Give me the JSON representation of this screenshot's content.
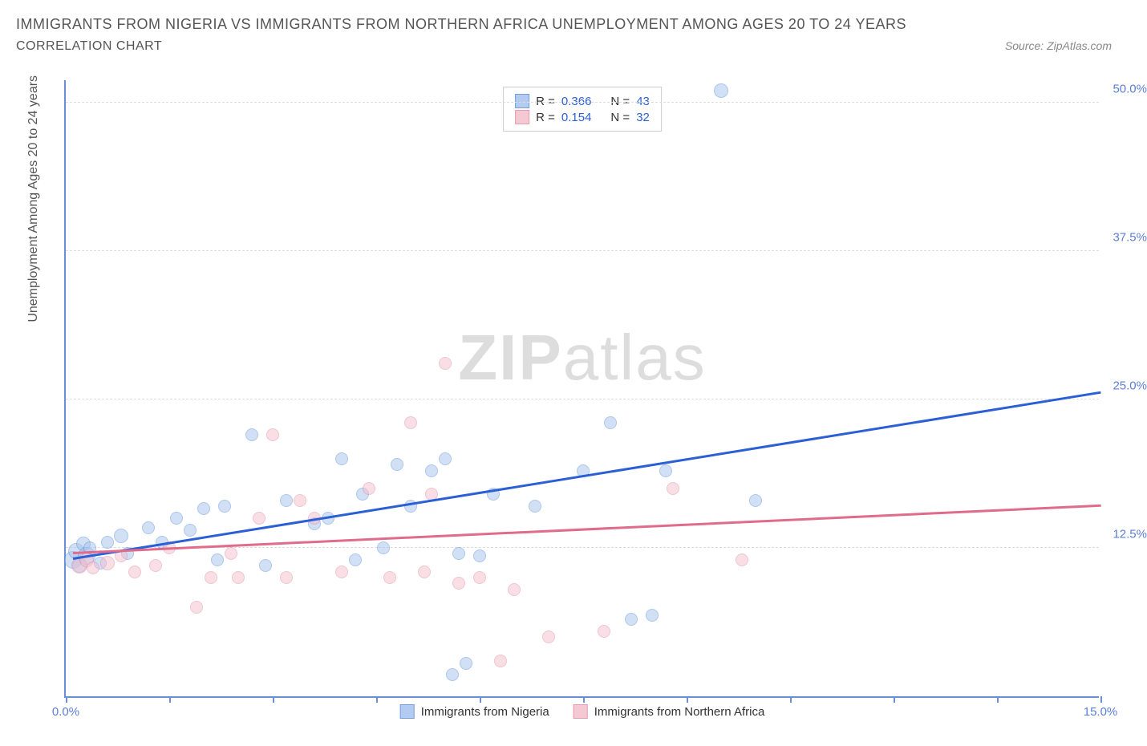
{
  "header": {
    "title": "IMMIGRANTS FROM NIGERIA VS IMMIGRANTS FROM NORTHERN AFRICA UNEMPLOYMENT AMONG AGES 20 TO 24 YEARS",
    "subtitle": "CORRELATION CHART",
    "source_prefix": "Source: ",
    "source_name": "ZipAtlas.com"
  },
  "chart": {
    "type": "scatter",
    "y_axis_label": "Unemployment Among Ages 20 to 24 years",
    "xlim": [
      0,
      15
    ],
    "ylim": [
      0,
      52
    ],
    "x_ticks": [
      0,
      15
    ],
    "x_tick_labels": [
      "0.0%",
      "15.0%"
    ],
    "y_ticks": [
      12.5,
      25.0,
      37.5,
      50.0
    ],
    "y_tick_labels": [
      "12.5%",
      "25.0%",
      "37.5%",
      "50.0%"
    ],
    "x_minor_ticks": [
      0,
      1.5,
      3,
      4.5,
      6,
      7.5,
      9,
      10.5,
      12,
      13.5,
      15
    ],
    "background_color": "#ffffff",
    "grid_color": "#dddddd",
    "axis_color": "#6b8fd6",
    "tick_label_color": "#5b7fd6",
    "watermark_text_bold": "ZIP",
    "watermark_text_light": "atlas",
    "series": [
      {
        "name": "Immigrants from Nigeria",
        "color_fill": "#a6c3ee",
        "color_stroke": "#5b8fd6",
        "fill_opacity": 0.5,
        "marker_size": 16,
        "R": "0.366",
        "N": "43",
        "trend": {
          "x1": 0.1,
          "y1": 11.5,
          "x2": 15,
          "y2": 25.5,
          "color": "#2b5fd6"
        },
        "points": [
          {
            "x": 0.1,
            "y": 11.5,
            "r": 11
          },
          {
            "x": 0.15,
            "y": 12.2,
            "r": 10
          },
          {
            "x": 0.2,
            "y": 11.0,
            "r": 9
          },
          {
            "x": 0.25,
            "y": 12.8,
            "r": 9
          },
          {
            "x": 0.3,
            "y": 11.8,
            "r": 11
          },
          {
            "x": 0.35,
            "y": 12.5,
            "r": 8
          },
          {
            "x": 0.5,
            "y": 11.2,
            "r": 8
          },
          {
            "x": 0.6,
            "y": 13.0,
            "r": 8
          },
          {
            "x": 0.8,
            "y": 13.5,
            "r": 9
          },
          {
            "x": 0.9,
            "y": 12.0,
            "r": 8
          },
          {
            "x": 1.2,
            "y": 14.2,
            "r": 8
          },
          {
            "x": 1.4,
            "y": 13.0,
            "r": 8
          },
          {
            "x": 1.6,
            "y": 15.0,
            "r": 8
          },
          {
            "x": 1.8,
            "y": 14.0,
            "r": 8
          },
          {
            "x": 2.0,
            "y": 15.8,
            "r": 8
          },
          {
            "x": 2.2,
            "y": 11.5,
            "r": 8
          },
          {
            "x": 2.3,
            "y": 16.0,
            "r": 8
          },
          {
            "x": 2.7,
            "y": 22.0,
            "r": 8
          },
          {
            "x": 2.9,
            "y": 11.0,
            "r": 8
          },
          {
            "x": 3.2,
            "y": 16.5,
            "r": 8
          },
          {
            "x": 3.6,
            "y": 14.5,
            "r": 8
          },
          {
            "x": 3.8,
            "y": 15.0,
            "r": 8
          },
          {
            "x": 4.0,
            "y": 20.0,
            "r": 8
          },
          {
            "x": 4.3,
            "y": 17.0,
            "r": 8
          },
          {
            "x": 4.6,
            "y": 12.5,
            "r": 8
          },
          {
            "x": 4.8,
            "y": 19.5,
            "r": 8
          },
          {
            "x": 5.0,
            "y": 16.0,
            "r": 8
          },
          {
            "x": 5.3,
            "y": 19.0,
            "r": 8
          },
          {
            "x": 5.5,
            "y": 20.0,
            "r": 8
          },
          {
            "x": 5.7,
            "y": 12.0,
            "r": 8
          },
          {
            "x": 5.8,
            "y": 2.8,
            "r": 8
          },
          {
            "x": 5.6,
            "y": 1.8,
            "r": 8
          },
          {
            "x": 6.0,
            "y": 11.8,
            "r": 8
          },
          {
            "x": 6.2,
            "y": 17.0,
            "r": 8
          },
          {
            "x": 6.8,
            "y": 16.0,
            "r": 8
          },
          {
            "x": 7.5,
            "y": 19.0,
            "r": 8
          },
          {
            "x": 7.9,
            "y": 23.0,
            "r": 8
          },
          {
            "x": 8.2,
            "y": 6.5,
            "r": 8
          },
          {
            "x": 8.5,
            "y": 6.8,
            "r": 8
          },
          {
            "x": 8.7,
            "y": 19.0,
            "r": 8
          },
          {
            "x": 9.5,
            "y": 51.0,
            "r": 9
          },
          {
            "x": 10.0,
            "y": 16.5,
            "r": 8
          },
          {
            "x": 4.2,
            "y": 11.5,
            "r": 8
          }
        ]
      },
      {
        "name": "Immigrants from Northern Africa",
        "color_fill": "#f4c0cd",
        "color_stroke": "#e08ba3",
        "fill_opacity": 0.5,
        "marker_size": 16,
        "R": "0.154",
        "N": "32",
        "trend": {
          "x1": 0.1,
          "y1": 12.0,
          "x2": 15,
          "y2": 16.0,
          "color": "#e06b8b"
        },
        "points": [
          {
            "x": 0.2,
            "y": 11.0,
            "r": 10
          },
          {
            "x": 0.3,
            "y": 11.5,
            "r": 9
          },
          {
            "x": 0.4,
            "y": 10.8,
            "r": 8
          },
          {
            "x": 0.6,
            "y": 11.2,
            "r": 9
          },
          {
            "x": 0.8,
            "y": 11.8,
            "r": 8
          },
          {
            "x": 1.0,
            "y": 10.5,
            "r": 8
          },
          {
            "x": 1.3,
            "y": 11.0,
            "r": 8
          },
          {
            "x": 1.5,
            "y": 12.5,
            "r": 8
          },
          {
            "x": 1.9,
            "y": 7.5,
            "r": 8
          },
          {
            "x": 2.1,
            "y": 10.0,
            "r": 8
          },
          {
            "x": 2.5,
            "y": 10.0,
            "r": 8
          },
          {
            "x": 2.8,
            "y": 15.0,
            "r": 8
          },
          {
            "x": 3.0,
            "y": 22.0,
            "r": 8
          },
          {
            "x": 3.2,
            "y": 10.0,
            "r": 8
          },
          {
            "x": 3.4,
            "y": 16.5,
            "r": 8
          },
          {
            "x": 3.6,
            "y": 15.0,
            "r": 8
          },
          {
            "x": 4.0,
            "y": 10.5,
            "r": 8
          },
          {
            "x": 4.4,
            "y": 17.5,
            "r": 8
          },
          {
            "x": 4.7,
            "y": 10.0,
            "r": 8
          },
          {
            "x": 5.0,
            "y": 23.0,
            "r": 8
          },
          {
            "x": 5.2,
            "y": 10.5,
            "r": 8
          },
          {
            "x": 5.3,
            "y": 17.0,
            "r": 8
          },
          {
            "x": 5.5,
            "y": 28.0,
            "r": 8
          },
          {
            "x": 5.7,
            "y": 9.5,
            "r": 8
          },
          {
            "x": 6.0,
            "y": 10.0,
            "r": 8
          },
          {
            "x": 6.3,
            "y": 3.0,
            "r": 8
          },
          {
            "x": 6.5,
            "y": 9.0,
            "r": 8
          },
          {
            "x": 7.0,
            "y": 5.0,
            "r": 8
          },
          {
            "x": 7.8,
            "y": 5.5,
            "r": 8
          },
          {
            "x": 8.8,
            "y": 17.5,
            "r": 8
          },
          {
            "x": 9.8,
            "y": 11.5,
            "r": 8
          },
          {
            "x": 2.4,
            "y": 12.0,
            "r": 8
          }
        ]
      }
    ],
    "legend_labels": {
      "R": "R =",
      "N": "N ="
    }
  }
}
